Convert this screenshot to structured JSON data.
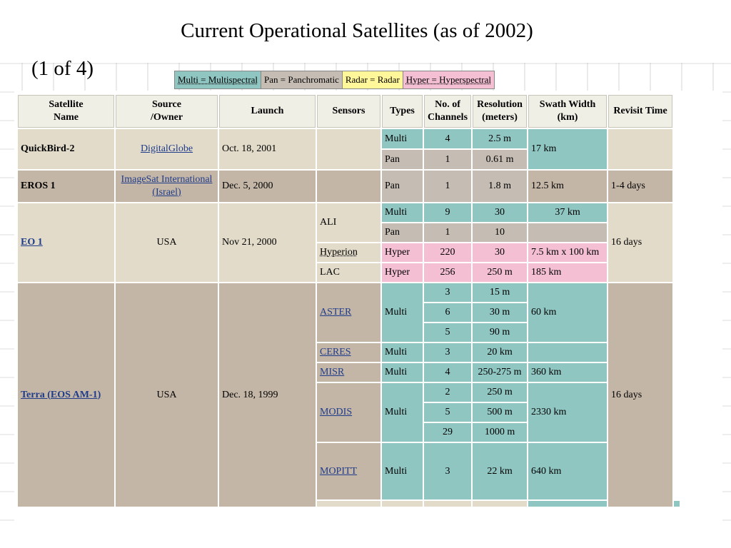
{
  "title": "Current Operational Satellites (as of 2002)",
  "page_counter": "(1 of 4)",
  "legend": {
    "multi": "Multi = Multispectral",
    "pan": "Pan = Panchromatic",
    "radar": "Radar = Radar",
    "hyper": "Hyper = Hyperspectral",
    "colors": {
      "multi": "#8fc6c2",
      "pan": "#c5bdb4",
      "radar": "#fff79a",
      "hyper": "#f4bfd3"
    }
  },
  "table": {
    "headers": {
      "satellite": "Satellite\nName",
      "source": "Source\n/Owner",
      "launch": "Launch",
      "sensors": "Sensors",
      "types": "Types",
      "channels": "No. of\nChannels",
      "resolution": "Resolution\n(meters)",
      "swath": "Swath Width\n(km)",
      "revisit": "Revisit Time"
    },
    "quickbird": {
      "name": "QuickBird-2",
      "source": "DigitalGlobe",
      "launch": "Oct. 18, 2001",
      "r1": {
        "type": "Multi",
        "channels": "4",
        "resolution": "2.5 m"
      },
      "r2": {
        "type": "Pan",
        "channels": "1",
        "resolution": "0.61 m"
      },
      "swath": "17 km"
    },
    "eros": {
      "name": "EROS 1",
      "source": "ImageSat International (Israel)",
      "launch": "Dec. 5, 2000",
      "type": "Pan",
      "channels": "1",
      "resolution": "1.8 m",
      "swath": "12.5 km",
      "revisit": "1-4 days"
    },
    "eo1": {
      "name": "EO 1",
      "source": "USA",
      "launch": "Nov 21, 2000",
      "revisit": "16 days",
      "ali": {
        "sensor": "ALI",
        "r1": {
          "type": "Multi",
          "channels": "9",
          "resolution": "30",
          "swath": "37 km"
        },
        "r2": {
          "type": "Pan",
          "channels": "1",
          "resolution": "10"
        }
      },
      "hyperion": {
        "sensor": "Hyperion",
        "type": "Hyper",
        "channels": "220",
        "resolution": "30",
        "swath": "7.5 km x 100 km"
      },
      "lac": {
        "sensor": "LAC",
        "type": "Hyper",
        "channels": "256",
        "resolution": "250 m",
        "swath": "185 km"
      }
    },
    "terra": {
      "name": "Terra (EOS AM-1)",
      "source": "USA",
      "launch": "Dec. 18, 1999",
      "revisit": "16 days",
      "aster": {
        "sensor": "ASTER",
        "type": "Multi",
        "swath": "60 km",
        "rows": [
          {
            "channels": "3",
            "resolution": "15 m"
          },
          {
            "channels": "6",
            "resolution": "30 m"
          },
          {
            "channels": "5",
            "resolution": "90 m"
          }
        ]
      },
      "ceres": {
        "sensor": "CERES",
        "type": "Multi",
        "channels": "3",
        "resolution": "20 km"
      },
      "misr": {
        "sensor": "MISR",
        "type": "Multi",
        "channels": "4",
        "resolution": "250-275 m",
        "swath": "360 km"
      },
      "modis": {
        "sensor": "MODIS",
        "type": "Multi",
        "swath": "2330 km",
        "rows": [
          {
            "channels": "2",
            "resolution": "250 m"
          },
          {
            "channels": "5",
            "resolution": "500 m"
          },
          {
            "channels": "29",
            "resolution": "1000 m"
          }
        ]
      },
      "mopitt": {
        "sensor": "MOPITT",
        "type": "Multi",
        "channels": "3",
        "resolution": "22 km",
        "swath": "640 km"
      }
    }
  }
}
